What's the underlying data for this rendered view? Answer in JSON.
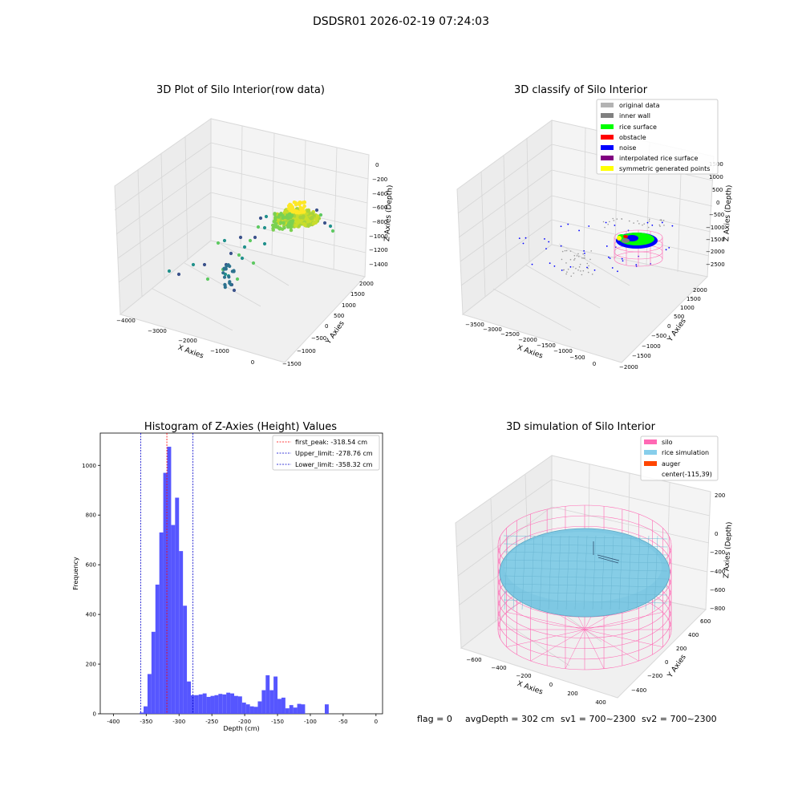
{
  "suptitle": "DSDSR01 2026-02-19 07:24:03",
  "footer": {
    "flag": "flag = 0",
    "avg": "avgDepth = 302 cm",
    "sv1": "sv1 = 700~2300",
    "sv2": "sv2 = 700~2300"
  },
  "colors": {
    "hist_bar": "#4d4dff",
    "peak_line": "#ff0000",
    "limit_line": "#0000cc",
    "silo_wire": "#ff69b4",
    "rice_surface": "#7ec8e3",
    "pane": "#f2f2f2"
  },
  "chart_data": [
    {
      "type": "scatter",
      "projection": "3d",
      "title": "3D Plot of Silo Interior(row data)",
      "xlabel": "X Axies",
      "ylabel": "Y Axies",
      "zlabel": "Z Axies (Depth)",
      "x_ticks": [
        "−4000",
        "−3000",
        "−2000",
        "−1000",
        "0"
      ],
      "y_ticks": [
        "−1500",
        "−1000",
        "−500",
        "0",
        "500",
        "1000",
        "1500",
        "2000"
      ],
      "z_ticks": [
        "0",
        "−200",
        "−400",
        "−600",
        "−800",
        "−1000",
        "−1200",
        "−1400"
      ],
      "colormap": "viridis (colored by depth)"
    },
    {
      "type": "scatter",
      "projection": "3d",
      "title": "3D classify of Silo Interior",
      "xlabel": "X Axies",
      "ylabel": "Y Axies",
      "zlabel": "Z Axies (Depth)",
      "x_ticks": [
        "−3500",
        "−3000",
        "−2500",
        "−2000",
        "−1500",
        "−1000",
        "−500",
        "0"
      ],
      "y_ticks": [
        "−2000",
        "−1500",
        "−1000",
        "−500",
        "0",
        "500",
        "1000",
        "1500",
        "2000"
      ],
      "z_ticks": [
        "1500",
        "1000",
        "500",
        "0",
        "−500",
        "−1000",
        "−1500",
        "−2000",
        "−2500"
      ],
      "legend_position": "top-right",
      "legend": [
        {
          "label": "original data",
          "color": "#b3b3b3"
        },
        {
          "label": "inner wall",
          "color": "#808080"
        },
        {
          "label": "rice surface",
          "color": "#00ff00"
        },
        {
          "label": "obstacle",
          "color": "#ff0000"
        },
        {
          "label": "noise",
          "color": "#0000ff"
        },
        {
          "label": "interpolated rice surface",
          "color": "#800080"
        },
        {
          "label": "symmetric generated points",
          "color": "#ffff00"
        }
      ]
    },
    {
      "type": "bar",
      "title": "Histogram of Z-Axies (Height) Values",
      "xlabel": "Depth (cm)",
      "ylabel": "Frequency",
      "xlim": [
        -420,
        10
      ],
      "ylim": [
        0,
        1130
      ],
      "x_ticks": [
        -400,
        -350,
        -300,
        -250,
        -200,
        -150,
        -100,
        -50,
        0
      ],
      "y_ticks": [
        0,
        200,
        400,
        600,
        800,
        1000
      ],
      "bin_width": 6,
      "bins": [
        [
          -360,
          5
        ],
        [
          -354,
          30
        ],
        [
          -348,
          160
        ],
        [
          -342,
          330
        ],
        [
          -336,
          520
        ],
        [
          -330,
          730
        ],
        [
          -324,
          970
        ],
        [
          -318,
          1075
        ],
        [
          -312,
          760
        ],
        [
          -306,
          870
        ],
        [
          -300,
          655
        ],
        [
          -294,
          435
        ],
        [
          -288,
          130
        ],
        [
          -282,
          75
        ],
        [
          -276,
          75
        ],
        [
          -270,
          78
        ],
        [
          -264,
          82
        ],
        [
          -258,
          68
        ],
        [
          -252,
          72
        ],
        [
          -246,
          75
        ],
        [
          -240,
          80
        ],
        [
          -234,
          78
        ],
        [
          -228,
          85
        ],
        [
          -222,
          82
        ],
        [
          -216,
          72
        ],
        [
          -210,
          70
        ],
        [
          -204,
          45
        ],
        [
          -198,
          38
        ],
        [
          -192,
          30
        ],
        [
          -186,
          28
        ],
        [
          -180,
          50
        ],
        [
          -174,
          95
        ],
        [
          -168,
          155
        ],
        [
          -162,
          95
        ],
        [
          -156,
          150
        ],
        [
          -150,
          60
        ],
        [
          -144,
          65
        ],
        [
          -138,
          22
        ],
        [
          -132,
          35
        ],
        [
          -126,
          25
        ],
        [
          -120,
          40
        ],
        [
          -114,
          38
        ],
        [
          -78,
          38
        ]
      ],
      "vlines": [
        {
          "x": -318.54,
          "label": "first_peak: -318.54 cm",
          "color": "#ff0000"
        },
        {
          "x": -278.76,
          "label": "Upper_limit: -278.76 cm",
          "color": "#0000cc"
        },
        {
          "x": -358.32,
          "label": "Lower_limit: -358.32 cm",
          "color": "#0000cc"
        }
      ],
      "legend_position": "top-right"
    },
    {
      "type": "surface",
      "projection": "3d",
      "title": "3D simulation of Silo Interior",
      "xlabel": "X Axies",
      "ylabel": "Y Axies",
      "zlabel": "Z Axies (Depth)",
      "x_ticks": [
        "−600",
        "−400",
        "−200",
        "0",
        "200",
        "400"
      ],
      "y_ticks": [
        "−400",
        "−200",
        "0",
        "200",
        "400",
        "600"
      ],
      "z_ticks": [
        "200",
        "0",
        "−200",
        "−400",
        "−600",
        "−800"
      ],
      "legend_position": "top-right",
      "legend": [
        {
          "label": "silo",
          "color": "#ff69b4"
        },
        {
          "label": "rice simulation",
          "color": "#87ceeb"
        },
        {
          "label": "auger",
          "color": "#ff4500"
        },
        {
          "label": "center(-115,39)",
          "color": ""
        }
      ]
    }
  ]
}
